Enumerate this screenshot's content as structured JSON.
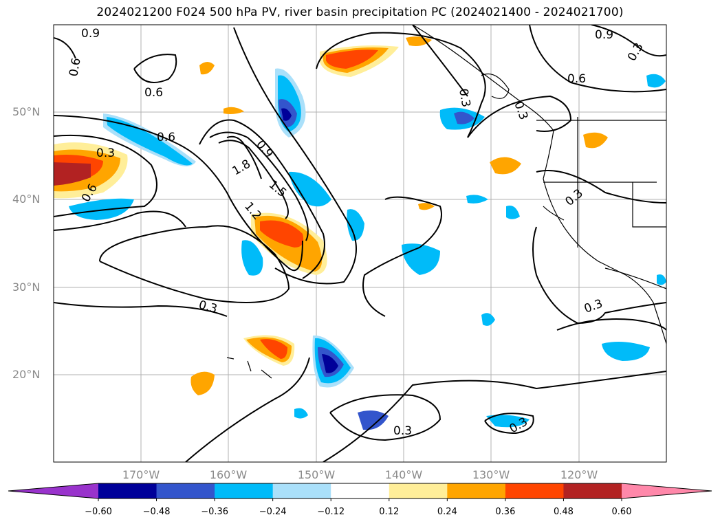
{
  "title": "2024021200 F024 500 hPa PV, river basin precipitation PC (2024021400 - 2024021700)",
  "lat_labels": [
    "50°N",
    "40°N",
    "30°N",
    "20°N"
  ],
  "lon_labels": [
    "170°W",
    "160°W",
    "150°W",
    "140°W",
    "130°W",
    "120°W"
  ],
  "contour_labels": [
    "0.9",
    "0.6",
    "0.9",
    "0.6",
    "0.3",
    "0.6",
    "0.6",
    "0.3",
    "0.6",
    "0.3",
    "1.8",
    "0.9",
    "1.5",
    "1.2",
    "0.3",
    "0.3",
    "0.3",
    "0.3",
    "0.3",
    "0.3"
  ],
  "colorbar": {
    "ticks": [
      "−0.60",
      "−0.48",
      "−0.36",
      "−0.24",
      "−0.12",
      "0.12",
      "0.24",
      "0.36",
      "0.48",
      "0.60"
    ],
    "colors": [
      "#9933cc",
      "#000099",
      "#3355cc",
      "#00bbf9",
      "#aae0fa",
      "#ffffff",
      "#ffee99",
      "#ffa500",
      "#ff4500",
      "#b22222",
      "#ff88aa"
    ]
  }
}
